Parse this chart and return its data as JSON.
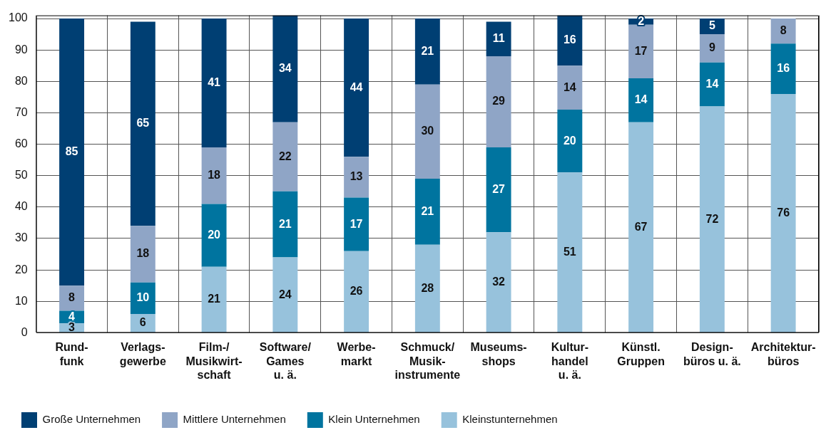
{
  "chart_data": {
    "type": "bar",
    "stacked": true,
    "categories": [
      "Rund-\nfunk",
      "Verlags-\ngewerbe",
      "Film-/\nMusikwirt-\nschaft",
      "Software/\nGames\nu. ä.",
      "Werbe-\nmarkt",
      "Schmuck/\nMusik-\ninstrumente",
      "Museums-\nshops",
      "Kultur-\nhandel\nu. ä.",
      "Künstl.\nGruppen",
      "Design-\nbüros u. ä.",
      "Architektur-\nbüros"
    ],
    "series": [
      {
        "name": "Kleinstunternehmen",
        "color": "#97c2dc",
        "values": [
          3,
          6,
          21,
          24,
          26,
          28,
          32,
          51,
          67,
          72,
          76
        ]
      },
      {
        "name": "Klein Unternehmen",
        "color": "#00749f",
        "values": [
          4,
          10,
          20,
          21,
          17,
          21,
          27,
          20,
          14,
          14,
          16
        ]
      },
      {
        "name": "Mittlere Unternehmen",
        "color": "#8fa5c6",
        "values": [
          8,
          18,
          18,
          22,
          13,
          30,
          29,
          14,
          17,
          9,
          8
        ]
      },
      {
        "name": "Große Unternehmen",
        "color": "#003f73",
        "values": [
          85,
          65,
          41,
          34,
          44,
          21,
          11,
          16,
          2,
          5,
          null
        ]
      }
    ],
    "ylim": [
      0,
      101
    ],
    "yticks": [
      0,
      10,
      20,
      30,
      40,
      50,
      60,
      70,
      80,
      90,
      100
    ],
    "grid": true,
    "legend": "bottom left",
    "data_labels": true
  }
}
